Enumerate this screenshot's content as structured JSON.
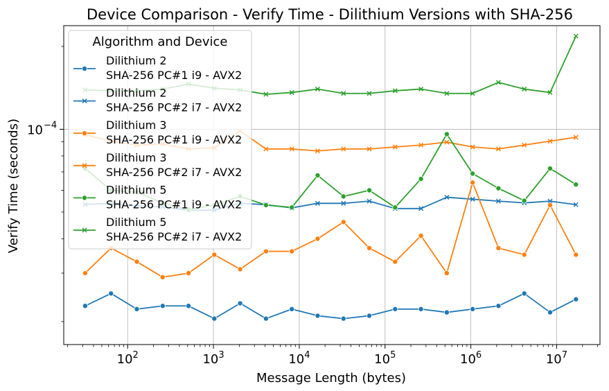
{
  "chart_data": {
    "type": "line",
    "title": "Device Comparison - Verify Time - Dilithium Versions with SHA-256",
    "xlabel": "Message Length (bytes)",
    "ylabel": "Verify Time (seconds)",
    "xscale": "log",
    "yscale": "log",
    "xlim": [
      18,
      32000000
    ],
    "ylim": [
      1.65e-05,
      0.000238
    ],
    "grid": true,
    "x_ticks": [
      {
        "value": 100,
        "base": "10",
        "exp": "2"
      },
      {
        "value": 1000,
        "base": "10",
        "exp": "3"
      },
      {
        "value": 10000,
        "base": "10",
        "exp": "4"
      },
      {
        "value": 100000,
        "base": "10",
        "exp": "5"
      },
      {
        "value": 1000000,
        "base": "10",
        "exp": "6"
      },
      {
        "value": 10000000,
        "base": "10",
        "exp": "7"
      }
    ],
    "y_ticks": [
      {
        "value": 0.0001,
        "base": "10",
        "exp": "−4"
      }
    ],
    "legend": {
      "title": "Algorithm and Device",
      "placement": "upper-left"
    },
    "x": [
      32,
      64,
      128,
      256,
      512,
      1024,
      2048,
      4096,
      8192,
      16384,
      32768,
      65536,
      131072,
      262144,
      524288,
      1048576,
      2097152,
      4194304,
      8388608,
      16777216
    ],
    "series": [
      {
        "line1": "Dilithium 2",
        "line2": "SHA-256 PC#1 i9 - AVX2",
        "color": "#1f77b4",
        "marker": "circle",
        "values": [
          2.28e-05,
          2.53e-05,
          2.22e-05,
          2.28e-05,
          2.28e-05,
          2.05e-05,
          2.33e-05,
          2.05e-05,
          2.22e-05,
          2.1e-05,
          2.05e-05,
          2.1e-05,
          2.22e-05,
          2.22e-05,
          2.16e-05,
          2.22e-05,
          2.28e-05,
          2.53e-05,
          2.16e-05,
          2.41e-05
        ]
      },
      {
        "line1": "Dilithium 2",
        "line2": "SHA-256 PC#2 i7 - AVX2",
        "color": "#1f77b4",
        "marker": "x",
        "values": [
          5.33e-05,
          5.38e-05,
          5.27e-05,
          5.22e-05,
          5.08e-05,
          5.08e-05,
          5.38e-05,
          5.32e-05,
          5.18e-05,
          5.38e-05,
          5.38e-05,
          5.48e-05,
          5.15e-05,
          5.15e-05,
          5.66e-05,
          5.57e-05,
          5.48e-05,
          5.4e-05,
          5.48e-05,
          5.32e-05
        ]
      },
      {
        "line1": "Dilithium 3",
        "line2": "SHA-256 PC#1 i9 - AVX2",
        "color": "#ff7f0e",
        "marker": "circle",
        "values": [
          3e-05,
          3.7e-05,
          3.3e-05,
          2.9e-05,
          3e-05,
          3.5e-05,
          3.1e-05,
          3.6e-05,
          3.6e-05,
          4e-05,
          4.6e-05,
          3.7e-05,
          3.3e-05,
          4.1e-05,
          3e-05,
          6.4e-05,
          3.7e-05,
          3.5e-05,
          5.3e-05,
          3.5e-05
        ]
      },
      {
        "line1": "Dilithium 3",
        "line2": "SHA-256 PC#2 i7 - AVX2",
        "color": "#ff7f0e",
        "marker": "x",
        "values": [
          9.55e-05,
          9.05e-05,
          8.75e-05,
          8.85e-05,
          8.48e-05,
          8.56e-05,
          9.85e-05,
          8.48e-05,
          8.48e-05,
          8.34e-05,
          8.48e-05,
          8.48e-05,
          8.62e-05,
          8.76e-05,
          8.98e-05,
          8.62e-05,
          8.48e-05,
          8.76e-05,
          9.05e-05,
          9.35e-05
        ]
      },
      {
        "line1": "Dilithium 5",
        "line2": "SHA-256 PC#1 i9 - AVX2",
        "color": "#2ca02c",
        "marker": "circle",
        "values": [
          7.2e-05,
          6e-05,
          5.9e-05,
          5.4e-05,
          5.1e-05,
          5.3e-05,
          5.7e-05,
          5.3e-05,
          5.2e-05,
          6.8e-05,
          5.7e-05,
          6e-05,
          5.2e-05,
          6.6e-05,
          9.6e-05,
          6.9e-05,
          6.1e-05,
          5.5e-05,
          7.2e-05,
          6.3e-05
        ]
      },
      {
        "line1": "Dilithium 5",
        "line2": "SHA-256 PC#2 i7 - AVX2",
        "color": "#2ca02c",
        "marker": "x",
        "values": [
          0.000139,
          0.000138,
          0.000138,
          0.00014,
          0.000146,
          0.000141,
          0.000139,
          0.000134,
          0.000136,
          0.00014,
          0.000135,
          0.000135,
          0.000138,
          0.00014,
          0.000135,
          0.000135,
          0.000148,
          0.00014,
          0.000136,
          0.000218
        ]
      }
    ]
  }
}
